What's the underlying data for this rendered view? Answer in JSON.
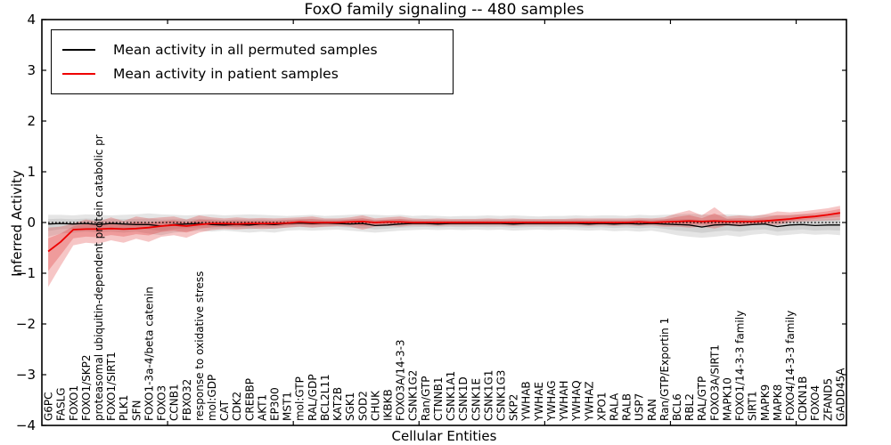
{
  "figure": {
    "title": "FoxO family signaling -- 480 samples",
    "xlabel": "Cellular Entities",
    "ylabel": "Inferred Activity"
  },
  "legend": {
    "items": [
      {
        "label": "Mean activity in all permuted samples",
        "color": "#000000"
      },
      {
        "label": "Mean activity in patient samples",
        "color": "#ee0000"
      }
    ]
  },
  "chart_data": {
    "type": "line",
    "title": "FoxO family signaling -- 480 samples",
    "xlabel": "Cellular Entities",
    "ylabel": "Inferred Activity",
    "ylim": [
      -4,
      4
    ],
    "xlim": [
      0,
      64
    ],
    "yticks": [
      -4,
      -3,
      -2,
      -1,
      0,
      1,
      2,
      3,
      4
    ],
    "ytick_labels": [
      "−4",
      "−3",
      "−2",
      "−1",
      "0",
      "1",
      "2",
      "3",
      "4"
    ],
    "xticks": [
      10,
      20,
      30,
      40,
      50,
      60
    ],
    "grid": false,
    "legend_position": "upper left",
    "zero_reference_line": {
      "value": 0,
      "style": "dotted",
      "color": "#000000"
    },
    "inner_band_fraction": 0.55,
    "categories": [
      "G6PC",
      "FASLG",
      "FOXO1",
      "FOXO1/SKP2",
      "proteasomal ubiquitin-dependent protein catabolic pr",
      "FOXO1/SIRT1",
      "PLK1",
      "SFN",
      "FOXO1-3a-4/beta catenin",
      "FOXO3",
      "CCNB1",
      "FBXO32",
      "response to oxidative stress",
      "mol:GDP",
      "CAT",
      "CDK2",
      "CREBBP",
      "AKT1",
      "EP300",
      "MST1",
      "mol:GTP",
      "RAL/GDP",
      "BCL2L11",
      "KAT2B",
      "SGK1",
      "SOD2",
      "CHUK",
      "IKBKB",
      "FOXO3A/14-3-3",
      "CSNK1G2",
      "Ran/GTP",
      "CTNNB1",
      "CSNK1A1",
      "CSNK1D",
      "CSNK1E",
      "CSNK1G1",
      "CSNK1G3",
      "SKP2",
      "YWHAB",
      "YWHAE",
      "YWHAG",
      "YWHAH",
      "YWHAQ",
      "YWHAZ",
      "XPO1",
      "RALA",
      "RALB",
      "USP7",
      "RAN",
      "Ran/GTP/Exportin 1",
      "BCL6",
      "RBL2",
      "RAL/GTP",
      "FOXO3A/SIRT1",
      "MAPK10",
      "FOXO1/14-3-3 family",
      "SIRT1",
      "MAPK9",
      "MAPK8",
      "FOXO4/14-3-3 family",
      "CDKN1B",
      "FOXO4",
      "ZFAND5",
      "GADD45A"
    ],
    "series": [
      {
        "name": "Mean activity in all permuted samples",
        "line_color": "#000000",
        "band_color": "#999999",
        "mean": [
          -0.03,
          -0.02,
          -0.03,
          -0.02,
          -0.04,
          -0.02,
          -0.03,
          -0.04,
          -0.04,
          -0.07,
          -0.04,
          -0.03,
          -0.02,
          -0.04,
          -0.05,
          -0.04,
          -0.05,
          -0.03,
          -0.04,
          -0.02,
          -0.01,
          -0.02,
          -0.01,
          -0.02,
          -0.03,
          -0.02,
          -0.06,
          -0.05,
          -0.03,
          -0.02,
          -0.02,
          -0.03,
          -0.02,
          -0.02,
          -0.02,
          -0.02,
          -0.02,
          -0.03,
          -0.02,
          -0.02,
          -0.02,
          -0.02,
          -0.02,
          -0.03,
          -0.02,
          -0.03,
          -0.02,
          -0.03,
          -0.02,
          -0.03,
          -0.04,
          -0.05,
          -0.09,
          -0.05,
          -0.04,
          -0.06,
          -0.04,
          -0.03,
          -0.08,
          -0.05,
          -0.04,
          -0.06,
          -0.05,
          -0.05
        ],
        "band_lower": [
          -0.28,
          -0.22,
          -0.2,
          -0.18,
          -0.2,
          -0.18,
          -0.2,
          -0.18,
          -0.22,
          -0.25,
          -0.2,
          -0.18,
          -0.16,
          -0.18,
          -0.16,
          -0.18,
          -0.2,
          -0.18,
          -0.2,
          -0.16,
          -0.15,
          -0.16,
          -0.15,
          -0.14,
          -0.16,
          -0.18,
          -0.2,
          -0.18,
          -0.16,
          -0.15,
          -0.14,
          -0.15,
          -0.14,
          -0.15,
          -0.14,
          -0.15,
          -0.14,
          -0.16,
          -0.15,
          -0.14,
          -0.15,
          -0.14,
          -0.15,
          -0.16,
          -0.15,
          -0.17,
          -0.16,
          -0.18,
          -0.16,
          -0.2,
          -0.25,
          -0.28,
          -0.3,
          -0.28,
          -0.25,
          -0.28,
          -0.24,
          -0.22,
          -0.26,
          -0.24,
          -0.22,
          -0.24,
          -0.23,
          -0.25
        ],
        "band_upper": [
          0.15,
          0.15,
          0.14,
          0.16,
          0.15,
          0.14,
          0.15,
          0.16,
          0.18,
          0.16,
          0.15,
          0.14,
          0.15,
          0.16,
          0.14,
          0.15,
          0.16,
          0.15,
          0.14,
          0.13,
          0.14,
          0.15,
          0.13,
          0.14,
          0.15,
          0.16,
          0.15,
          0.14,
          0.15,
          0.13,
          0.14,
          0.13,
          0.12,
          0.13,
          0.13,
          0.14,
          0.13,
          0.14,
          0.13,
          0.12,
          0.13,
          0.13,
          0.14,
          0.13,
          0.14,
          0.14,
          0.13,
          0.15,
          0.14,
          0.15,
          0.16,
          0.17,
          0.16,
          0.15,
          0.16,
          0.15,
          0.14,
          0.15,
          0.14,
          0.15,
          0.16,
          0.15,
          0.16,
          0.18
        ]
      },
      {
        "name": "Mean activity in patient samples",
        "line_color": "#ee0000",
        "band_color": "#dd2222",
        "mean": [
          -0.57,
          -0.38,
          -0.14,
          -0.13,
          -0.13,
          -0.12,
          -0.13,
          -0.12,
          -0.1,
          -0.07,
          -0.05,
          -0.07,
          -0.04,
          -0.02,
          -0.02,
          -0.03,
          -0.02,
          -0.02,
          -0.02,
          -0.01,
          0.01,
          0.0,
          0.0,
          0.0,
          0.01,
          0.02,
          0.0,
          0.01,
          0.01,
          0.0,
          0.0,
          0.0,
          0.0,
          0.0,
          0.0,
          0.0,
          0.0,
          0.0,
          0.0,
          0.0,
          0.0,
          0.0,
          0.0,
          0.0,
          0.0,
          0.0,
          0.0,
          0.01,
          0.0,
          0.01,
          0.02,
          0.03,
          0.02,
          0.03,
          0.02,
          0.02,
          0.02,
          0.03,
          0.05,
          0.07,
          0.1,
          0.12,
          0.15,
          0.19
        ],
        "band_lower": [
          -1.27,
          -0.85,
          -0.45,
          -0.4,
          -0.42,
          -0.35,
          -0.4,
          -0.32,
          -0.38,
          -0.28,
          -0.25,
          -0.3,
          -0.2,
          -0.15,
          -0.13,
          -0.14,
          -0.12,
          -0.13,
          -0.12,
          -0.1,
          -0.08,
          -0.1,
          -0.08,
          -0.07,
          -0.08,
          -0.14,
          -0.08,
          -0.07,
          -0.08,
          -0.06,
          -0.06,
          -0.07,
          -0.06,
          -0.06,
          -0.06,
          -0.06,
          -0.06,
          -0.07,
          -0.06,
          -0.06,
          -0.06,
          -0.06,
          -0.06,
          -0.07,
          -0.06,
          -0.07,
          -0.06,
          -0.07,
          -0.06,
          -0.08,
          -0.08,
          -0.1,
          -0.08,
          -0.12,
          -0.06,
          -0.08,
          -0.05,
          -0.04,
          -0.05,
          0.0,
          0.02,
          0.03,
          0.04,
          0.05
        ],
        "band_upper": [
          -0.1,
          -0.08,
          -0.02,
          0.06,
          0.02,
          0.1,
          0.03,
          0.12,
          0.08,
          0.1,
          0.12,
          0.06,
          0.14,
          0.1,
          0.08,
          0.1,
          0.08,
          0.09,
          0.08,
          0.09,
          0.1,
          0.12,
          0.08,
          0.08,
          0.1,
          0.14,
          0.08,
          0.1,
          0.12,
          0.08,
          0.07,
          0.08,
          0.07,
          0.07,
          0.07,
          0.08,
          0.07,
          0.08,
          0.07,
          0.07,
          0.07,
          0.07,
          0.08,
          0.08,
          0.08,
          0.08,
          0.08,
          0.09,
          0.08,
          0.1,
          0.18,
          0.24,
          0.14,
          0.3,
          0.12,
          0.14,
          0.12,
          0.16,
          0.22,
          0.2,
          0.22,
          0.25,
          0.28,
          0.33
        ]
      }
    ]
  }
}
